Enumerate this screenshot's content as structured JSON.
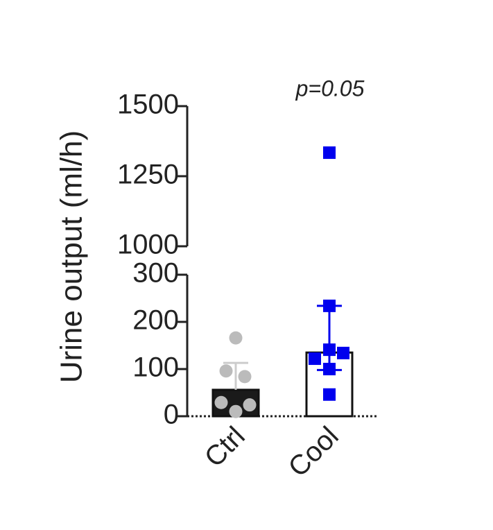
{
  "chart_data": {
    "type": "bar",
    "ylabel": "Urine output (ml/h)",
    "annotation": "p=0.05",
    "categories": [
      "Ctrl",
      "Cool"
    ],
    "values": [
      56,
      135
    ],
    "error_high": [
      113,
      234
    ],
    "error_low": [
      null,
      98
    ],
    "bar_colors": [
      "#1a1a1a",
      "#ffffff"
    ],
    "points": [
      [
        166,
        96,
        84,
        29,
        24,
        10
      ],
      [
        1334,
        234,
        141,
        122,
        134,
        100,
        46
      ]
    ],
    "point_colors": [
      "#bbbbbb",
      "#0000ee"
    ],
    "point_markers": [
      "circle",
      "square"
    ],
    "ylim": [
      0,
      300
    ],
    "yticks": [
      0,
      100,
      200,
      300
    ],
    "ylim_upper": [
      1000,
      1500
    ],
    "yticks_upper": [
      1000,
      1250,
      1500
    ]
  }
}
